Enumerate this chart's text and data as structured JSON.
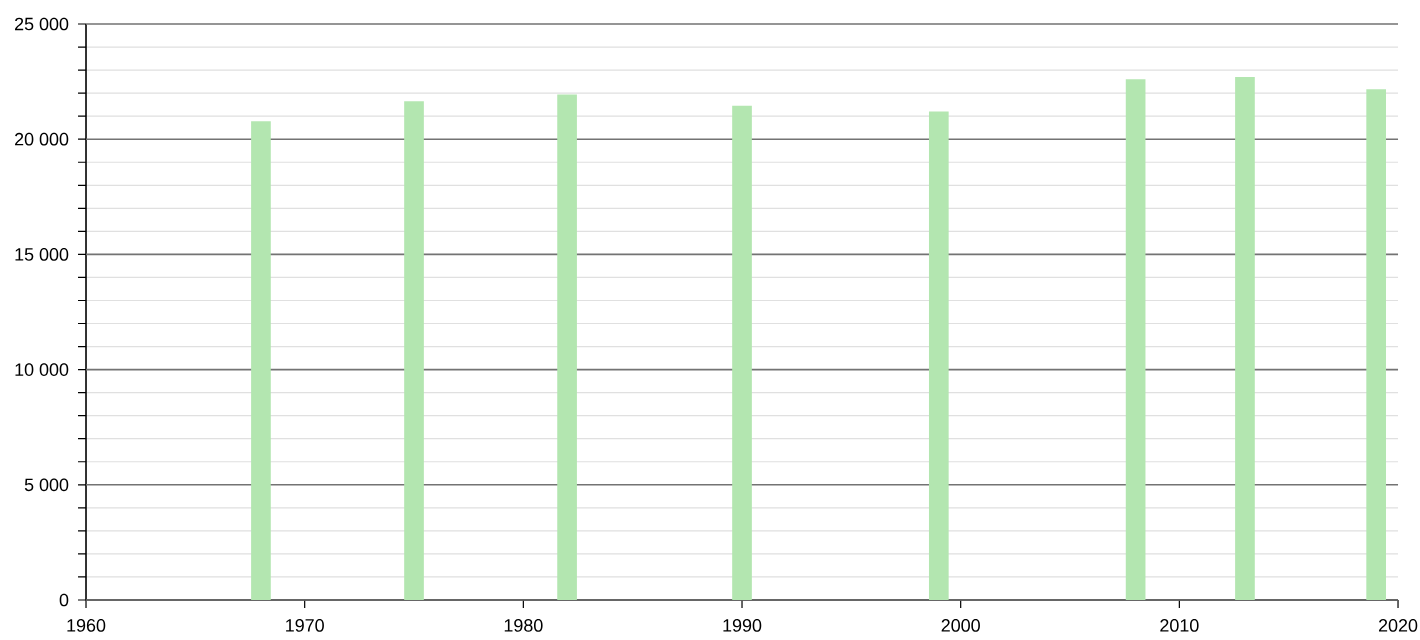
{
  "chart_data": {
    "type": "bar",
    "x": [
      1968,
      1975,
      1982,
      1990,
      1999,
      2008,
      2013,
      2019
    ],
    "values": [
      20780,
      21650,
      21940,
      21450,
      21200,
      22600,
      22700,
      22170
    ],
    "color": "#b3e6b0",
    "xlim": [
      1960,
      2020
    ],
    "xticks": [
      1960,
      1970,
      1980,
      1990,
      2000,
      2010,
      2020
    ],
    "ylim": [
      0,
      25000
    ],
    "yticks": [
      {
        "value": 0,
        "label": "0"
      },
      {
        "value": 1000,
        "label": null
      },
      {
        "value": 2000,
        "label": null
      },
      {
        "value": 3000,
        "label": null
      },
      {
        "value": 4000,
        "label": null
      },
      {
        "value": 5000,
        "label": "5 000"
      },
      {
        "value": 6000,
        "label": null
      },
      {
        "value": 7000,
        "label": null
      },
      {
        "value": 8000,
        "label": null
      },
      {
        "value": 9000,
        "label": null
      },
      {
        "value": 10000,
        "label": "10 000"
      },
      {
        "value": 11000,
        "label": null
      },
      {
        "value": 12000,
        "label": null
      },
      {
        "value": 13000,
        "label": null
      },
      {
        "value": 14000,
        "label": null
      },
      {
        "value": 15000,
        "label": "15 000"
      },
      {
        "value": 16000,
        "label": null
      },
      {
        "value": 17000,
        "label": null
      },
      {
        "value": 18000,
        "label": null
      },
      {
        "value": 19000,
        "label": null
      },
      {
        "value": 20000,
        "label": "20 000"
      },
      {
        "value": 21000,
        "label": null
      },
      {
        "value": 22000,
        "label": null
      },
      {
        "value": 23000,
        "label": null
      },
      {
        "value": 24000,
        "label": null
      },
      {
        "value": 25000,
        "label": "25 000"
      }
    ],
    "grid": "y"
  }
}
